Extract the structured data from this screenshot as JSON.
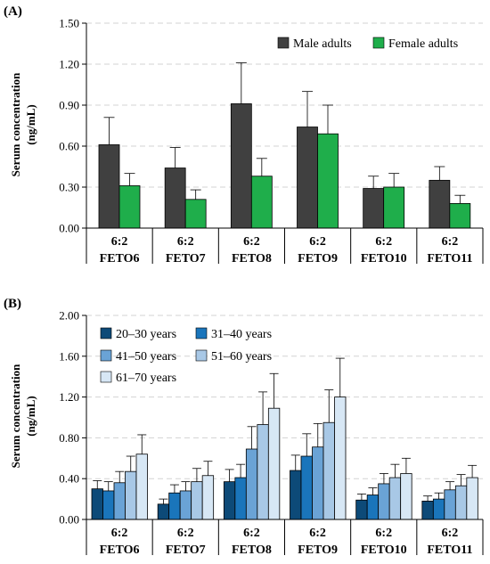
{
  "chart_data": [
    {
      "type": "bar",
      "panel_label": "(A)",
      "ylabel_line1": "Serum concentration",
      "ylabel_line2": "(ng/mL)",
      "categories": [
        {
          "line1": "6:2",
          "line2": "FETO6"
        },
        {
          "line1": "6:2",
          "line2": "FETO7"
        },
        {
          "line1": "6:2",
          "line2": "FETO8"
        },
        {
          "line1": "6:2",
          "line2": "FETO9"
        },
        {
          "line1": "6:2",
          "line2": "FETO10"
        },
        {
          "line1": "6:2",
          "line2": "FETO11"
        }
      ],
      "ylim": [
        0,
        1.5
      ],
      "yticks": [
        "0.00",
        "0.30",
        "0.60",
        "0.90",
        "1.20",
        "1.50"
      ],
      "grid": true,
      "legend_position": "top-right",
      "series": [
        {
          "name": "Male adults",
          "color": "#404040",
          "values": [
            0.61,
            0.44,
            0.91,
            0.74,
            0.29,
            0.35
          ],
          "errors": [
            0.2,
            0.15,
            0.3,
            0.26,
            0.09,
            0.1
          ]
        },
        {
          "name": "Female adults",
          "color": "#1fae4b",
          "values": [
            0.31,
            0.21,
            0.38,
            0.69,
            0.3,
            0.18
          ],
          "errors": [
            0.09,
            0.07,
            0.13,
            0.21,
            0.1,
            0.06
          ]
        }
      ]
    },
    {
      "type": "bar",
      "panel_label": "(B)",
      "ylabel_line1": "Serum concentration",
      "ylabel_line2": "(ng/mL)",
      "categories": [
        {
          "line1": "6:2",
          "line2": "FETO6"
        },
        {
          "line1": "6:2",
          "line2": "FETO7"
        },
        {
          "line1": "6:2",
          "line2": "FETO8"
        },
        {
          "line1": "6:2",
          "line2": "FETO9"
        },
        {
          "line1": "6:2",
          "line2": "FETO10"
        },
        {
          "line1": "6:2",
          "line2": "FETO11"
        }
      ],
      "ylim": [
        0,
        2.0
      ],
      "yticks": [
        "0.00",
        "0.40",
        "0.80",
        "1.20",
        "1.60",
        "2.00"
      ],
      "grid": true,
      "legend_position": "top-left",
      "series": [
        {
          "name": "20–30 years",
          "color": "#0d4a78",
          "values": [
            0.3,
            0.15,
            0.37,
            0.48,
            0.19,
            0.18
          ],
          "errors": [
            0.08,
            0.05,
            0.12,
            0.15,
            0.06,
            0.05
          ]
        },
        {
          "name": "31–40 years",
          "color": "#1a75bb",
          "values": [
            0.28,
            0.26,
            0.41,
            0.62,
            0.24,
            0.2
          ],
          "errors": [
            0.09,
            0.08,
            0.13,
            0.22,
            0.07,
            0.06
          ]
        },
        {
          "name": "41–50 years",
          "color": "#6aa3d6",
          "values": [
            0.36,
            0.28,
            0.69,
            0.71,
            0.35,
            0.29
          ],
          "errors": [
            0.11,
            0.09,
            0.22,
            0.23,
            0.1,
            0.08
          ]
        },
        {
          "name": "51–60 years",
          "color": "#a8c8e6",
          "values": [
            0.47,
            0.37,
            0.93,
            0.95,
            0.41,
            0.33
          ],
          "errors": [
            0.15,
            0.13,
            0.32,
            0.32,
            0.13,
            0.11
          ]
        },
        {
          "name": "61–70 years",
          "color": "#d7e7f5",
          "values": [
            0.64,
            0.43,
            1.09,
            1.2,
            0.45,
            0.41
          ],
          "errors": [
            0.19,
            0.14,
            0.34,
            0.38,
            0.15,
            0.12
          ]
        }
      ]
    }
  ]
}
